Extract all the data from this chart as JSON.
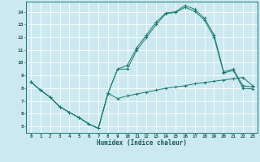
{
  "bg_color": "#cce8f0",
  "line_color": "#1a7a6e",
  "grid_color": "#ffffff",
  "xlim": [
    -0.5,
    23.5
  ],
  "ylim": [
    4.5,
    14.8
  ],
  "xticks": [
    0,
    1,
    2,
    3,
    4,
    5,
    6,
    7,
    8,
    9,
    10,
    11,
    12,
    13,
    14,
    15,
    16,
    17,
    18,
    19,
    20,
    21,
    22,
    23
  ],
  "yticks": [
    5,
    6,
    7,
    8,
    9,
    10,
    11,
    12,
    13,
    14
  ],
  "xlabel": "Humidex (Indice chaleur)",
  "line1_x": [
    0,
    1,
    2,
    3,
    4,
    5,
    6,
    7,
    8,
    9,
    10,
    11,
    12,
    13,
    14,
    15,
    16,
    17,
    18,
    19,
    20,
    21,
    22,
    23
  ],
  "line1_y": [
    8.5,
    7.85,
    7.3,
    6.55,
    6.1,
    5.7,
    5.2,
    4.85,
    7.6,
    7.2,
    7.4,
    7.55,
    7.7,
    7.85,
    8.0,
    8.1,
    8.2,
    8.35,
    8.45,
    8.55,
    8.65,
    8.75,
    8.85,
    8.2
  ],
  "line2_x": [
    0,
    1,
    2,
    3,
    4,
    5,
    6,
    7,
    8,
    9,
    10,
    11,
    12,
    13,
    14,
    15,
    16,
    17,
    18,
    19,
    20,
    21,
    22,
    23
  ],
  "line2_y": [
    8.5,
    7.85,
    7.3,
    6.55,
    6.1,
    5.7,
    5.2,
    4.85,
    7.6,
    9.5,
    9.8,
    11.2,
    12.2,
    13.2,
    13.9,
    14.0,
    14.5,
    14.2,
    13.5,
    12.2,
    9.3,
    9.5,
    8.2,
    8.1
  ],
  "line3_x": [
    0,
    1,
    2,
    3,
    4,
    5,
    6,
    7,
    8,
    9,
    10,
    11,
    12,
    13,
    14,
    15,
    16,
    17,
    18,
    19,
    20,
    21,
    22,
    23
  ],
  "line3_y": [
    8.5,
    7.85,
    7.3,
    6.55,
    6.1,
    5.7,
    5.2,
    4.85,
    7.6,
    9.5,
    9.5,
    11.0,
    12.0,
    13.0,
    13.85,
    13.95,
    14.35,
    14.05,
    13.35,
    12.0,
    9.2,
    9.4,
    8.0,
    7.95
  ]
}
